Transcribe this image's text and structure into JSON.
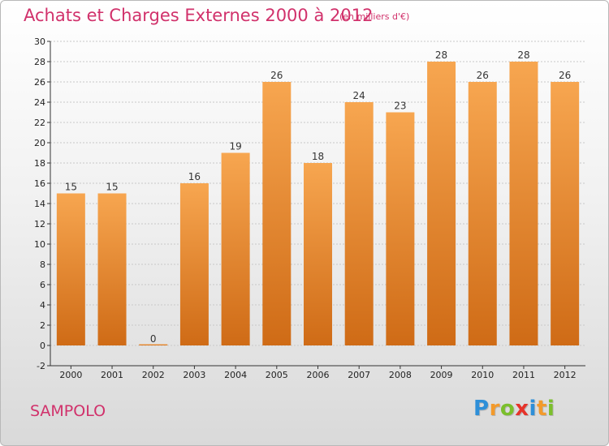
{
  "chart_data": {
    "type": "bar",
    "title": "Achats et Charges Externes 2000 à 2012",
    "subtitle": "(en milliers d'€)",
    "categories": [
      "2000",
      "2001",
      "2002",
      "2003",
      "2004",
      "2005",
      "2006",
      "2007",
      "2008",
      "2009",
      "2010",
      "2011",
      "2012"
    ],
    "values": [
      15,
      15,
      0,
      16,
      19,
      26,
      18,
      24,
      23,
      28,
      26,
      28,
      26
    ],
    "ylim": [
      -2,
      30
    ],
    "yticks": [
      -2,
      0,
      2,
      4,
      6,
      8,
      10,
      12,
      14,
      16,
      18,
      20,
      22,
      24,
      26,
      28,
      30
    ],
    "grid": true,
    "legend": "none",
    "xlabel": "",
    "ylabel": ""
  },
  "labels": {
    "commune": "SAMPOLO",
    "logo": [
      "P",
      "r",
      "o",
      "x",
      "i",
      "t",
      "i"
    ]
  },
  "colors": {
    "title": "#d1316b",
    "bar_light": "#f7a650",
    "bar_dark": "#cf6b16",
    "logo": [
      "#2e8fd8",
      "#f39a2b",
      "#7bbf2c",
      "#e6332a",
      "#2e8fd8",
      "#f39a2b",
      "#7bbf2c"
    ]
  }
}
